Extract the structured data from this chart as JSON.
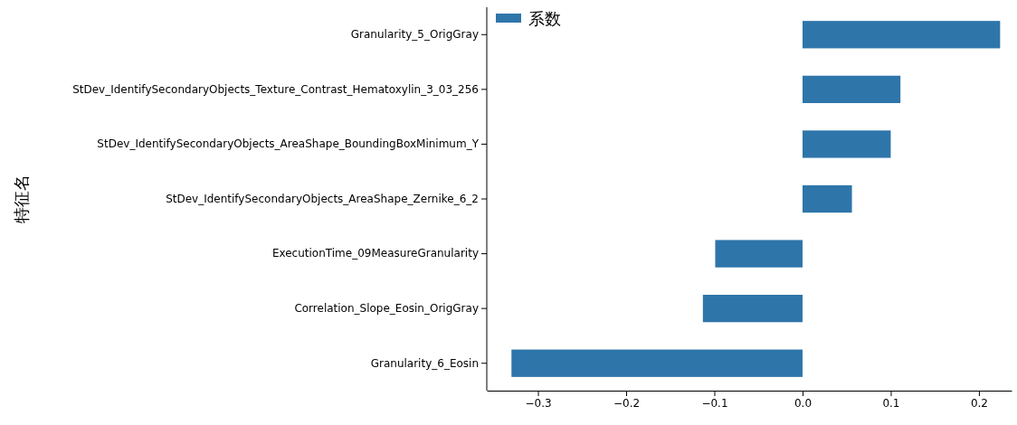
{
  "chart_data": {
    "type": "bar",
    "orientation": "horizontal",
    "ylabel": "特征名",
    "legend": "top left",
    "grid": false,
    "categories": [
      "Granularity_5_OrigGray",
      "StDev_IdentifySecondaryObjects_Texture_Contrast_Hematoxylin_3_03_256",
      "StDev_IdentifySecondaryObjects_AreaShape_BoundingBoxMinimum_Y",
      "StDev_IdentifySecondaryObjects_AreaShape_Zernike_6_2",
      "ExecutionTime_09MeasureGranularity",
      "Correlation_Slope_Eosin_OrigGray",
      "Granularity_6_Eosin"
    ],
    "series": [
      {
        "name": "系数",
        "color": "#2e75aa",
        "values": [
          0.224,
          0.111,
          0.1,
          0.056,
          -0.099,
          -0.113,
          -0.33
        ]
      }
    ],
    "xlim": [
      -0.358,
      0.237
    ],
    "xticks": [
      {
        "value": -0.3,
        "label": "−0.3"
      },
      {
        "value": -0.2,
        "label": "−0.2"
      },
      {
        "value": -0.1,
        "label": "−0.1"
      },
      {
        "value": 0,
        "label": "0.0"
      },
      {
        "value": 0.1,
        "label": "0.1"
      },
      {
        "value": 0.2,
        "label": "0.2"
      }
    ]
  }
}
